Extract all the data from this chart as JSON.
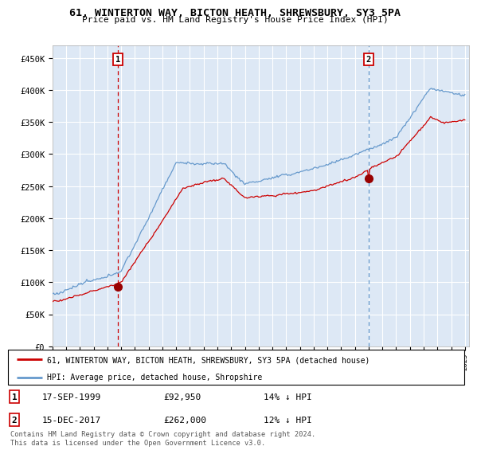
{
  "title": "61, WINTERTON WAY, BICTON HEATH, SHREWSBURY, SY3 5PA",
  "subtitle": "Price paid vs. HM Land Registry's House Price Index (HPI)",
  "legend_line1": "61, WINTERTON WAY, BICTON HEATH, SHREWSBURY, SY3 5PA (detached house)",
  "legend_line2": "HPI: Average price, detached house, Shropshire",
  "marker1_date": "17-SEP-1999",
  "marker1_price": "£92,950",
  "marker1_hpi": "14% ↓ HPI",
  "marker1_year": 1999.72,
  "marker1_value": 92950,
  "marker2_date": "15-DEC-2017",
  "marker2_price": "£262,000",
  "marker2_hpi": "12% ↓ HPI",
  "marker2_year": 2017.96,
  "marker2_value": 262000,
  "ylabel_ticks": [
    "£0",
    "£50K",
    "£100K",
    "£150K",
    "£200K",
    "£250K",
    "£300K",
    "£350K",
    "£400K",
    "£450K"
  ],
  "ytick_values": [
    0,
    50000,
    100000,
    150000,
    200000,
    250000,
    300000,
    350000,
    400000,
    450000
  ],
  "footer": "Contains HM Land Registry data © Crown copyright and database right 2024.\nThis data is licensed under the Open Government Licence v3.0.",
  "red_color": "#cc0000",
  "blue_color": "#6699cc",
  "bg_fill": "#dde8f5",
  "background_color": "#ffffff",
  "grid_color": "#cccccc"
}
